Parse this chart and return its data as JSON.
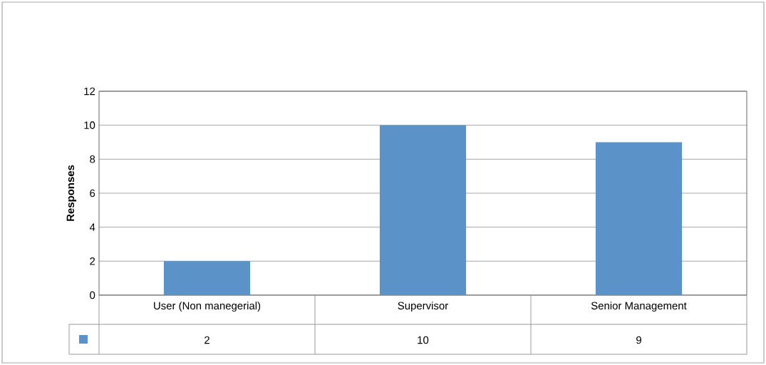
{
  "chart_data": {
    "type": "bar",
    "ylabel": "Responses",
    "categories": [
      "User (Non manegerial)",
      "Supervisor",
      "Senior Management"
    ],
    "values": [
      2,
      10,
      9
    ],
    "value_labels": [
      "2",
      "10",
      "9"
    ],
    "color": "#5b93c8",
    "ylim": [
      0,
      12
    ],
    "yticks": [
      0,
      2,
      4,
      6,
      8,
      10,
      12
    ],
    "grid": "y"
  }
}
